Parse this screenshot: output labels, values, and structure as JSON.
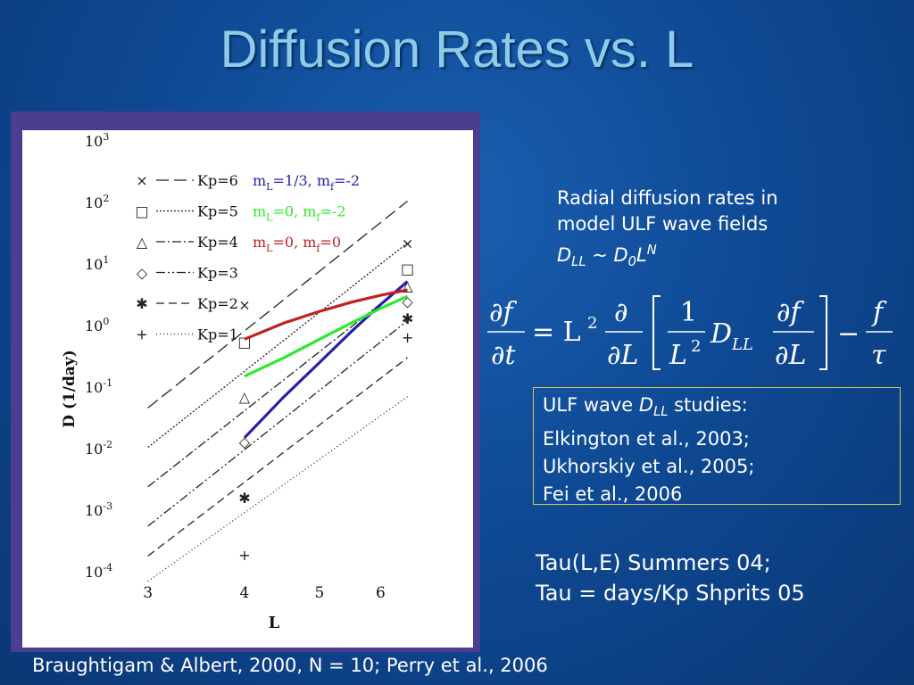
{
  "slide": {
    "title": "Diffusion Rates vs. L",
    "footer": "Braughtigam & Albert, 2000, N = 10; Perry et al., 2006"
  },
  "description": {
    "line1": "Radial diffusion rates in",
    "line2": "model ULF wave fields",
    "formula_D": "D",
    "formula_LL_sub": "LL",
    "formula_tilde": " ~ ",
    "formula_D0": "D",
    "formula_0_sub": "0",
    "formula_L": "L",
    "formula_N_sup": "N"
  },
  "equation": {
    "df": "∂f",
    "dt": "∂t",
    "equals_L": "= L",
    "sq": "2",
    "d": "∂",
    "dL": "∂L",
    "one": "1",
    "L2": "L",
    "D": "D",
    "LL": "LL",
    "df2": "∂f",
    "dL2": "∂L",
    "minus": "−",
    "f": "f",
    "tau": "τ"
  },
  "studies": {
    "line1_pre": "ULF wave ",
    "line1_D": "D",
    "line1_LL": "LL",
    "line1_post": " studies:",
    "line2": "Elkington et al., 2003;",
    "line3": "Ukhorskiy et al., 2005;",
    "line4": "Fei et al., 2006"
  },
  "tau": {
    "line1": "Tau(L,E) Summers 04;",
    "line2": "Tau = days/Kp  Shprits 05"
  },
  "chart_data": {
    "type": "line",
    "xlabel": "L",
    "ylabel": "D (1/day)",
    "x_scale": "log",
    "y_scale": "log",
    "xlim": [
      2.75,
      7.2
    ],
    "ylim": [
      0.0001,
      1000
    ],
    "x_ticks": [
      3,
      4,
      5,
      6
    ],
    "x_tick_labels": [
      "3",
      "4",
      "5",
      "6"
    ],
    "y_ticks": [
      0.0001,
      0.001,
      0.01,
      0.1,
      1,
      10,
      100,
      1000
    ],
    "y_tick_labels": [
      {
        "base": "10",
        "exp": "-4"
      },
      {
        "base": "10",
        "exp": "-3"
      },
      {
        "base": "10",
        "exp": "-2"
      },
      {
        "base": "10",
        "exp": "-1"
      },
      {
        "base": "10",
        "exp": "0"
      },
      {
        "base": "10",
        "exp": "1"
      },
      {
        "base": "10",
        "exp": "2"
      },
      {
        "base": "10",
        "exp": "3"
      }
    ],
    "kp_series": [
      {
        "name": "Kp=6",
        "marker": "×",
        "dash": "14,6",
        "line_x": [
          3.0,
          6.5
        ],
        "line_y": [
          0.046,
          105
        ],
        "points": [
          {
            "x": 4,
            "y": 2.2
          },
          {
            "x": 6.5,
            "y": 22
          }
        ]
      },
      {
        "name": "Kp=5",
        "marker": "□",
        "dash": "2,2",
        "line_x": [
          3.0,
          6.5
        ],
        "line_y": [
          0.0105,
          22
        ],
        "points": [
          {
            "x": 4,
            "y": 0.55
          },
          {
            "x": 6.5,
            "y": 8.5
          }
        ]
      },
      {
        "name": "Kp=4",
        "marker": "△",
        "dash": "10,3,2,3",
        "line_x": [
          3.0,
          6.5
        ],
        "line_y": [
          0.0024,
          5
        ],
        "points": [
          {
            "x": 4,
            "y": 0.07
          },
          {
            "x": 6.5,
            "y": 4.5
          }
        ]
      },
      {
        "name": "Kp=3",
        "marker": "◇",
        "dash": "10,3,2,3,2,3",
        "line_x": [
          3.0,
          6.5
        ],
        "line_y": [
          0.00055,
          1.2
        ],
        "points": [
          {
            "x": 4,
            "y": 0.013
          },
          {
            "x": 6.5,
            "y": 2.5
          }
        ]
      },
      {
        "name": "Kp=2",
        "marker": "✱",
        "dash": "9,5",
        "line_x": [
          3.0,
          6.5
        ],
        "line_y": [
          0.00018,
          0.3
        ],
        "points": [
          {
            "x": 4,
            "y": 0.0016
          },
          {
            "x": 6.5,
            "y": 1.3
          }
        ]
      },
      {
        "name": "Kp=1",
        "marker": "+",
        "dash": "1,3",
        "line_x": [
          3.0,
          6.5
        ],
        "line_y": [
          7e-05,
          0.07
        ],
        "points": [
          {
            "x": 4,
            "y": 0.00019
          },
          {
            "x": 6.5,
            "y": 0.65
          }
        ]
      }
    ],
    "model_series": [
      {
        "name_main": "m",
        "name_L": "L",
        "name_mid": "=1/3, m",
        "name_f": "f",
        "name_end": "=-2",
        "color": "#2222aa",
        "x": [
          4.0,
          4.5,
          5.0,
          5.5,
          6.0,
          6.5
        ],
        "y": [
          0.015,
          0.07,
          0.25,
          0.8,
          2.2,
          5.2
        ]
      },
      {
        "name_main": "m",
        "name_L": "L",
        "name_mid": "=0, m",
        "name_f": "f",
        "name_end": "=-2",
        "color": "#2ee82e",
        "x": [
          4.0,
          4.5,
          5.0,
          5.5,
          6.0,
          6.5
        ],
        "y": [
          0.15,
          0.3,
          0.6,
          1.1,
          1.9,
          3.0
        ]
      },
      {
        "name_main": "m",
        "name_L": "L",
        "name_mid": "=0, m",
        "name_f": "f",
        "name_end": "=0",
        "color": "#c02020",
        "x": [
          4.0,
          4.5,
          5.0,
          5.5,
          6.0,
          6.5
        ],
        "y": [
          0.6,
          1.1,
          1.7,
          2.4,
          3.1,
          3.8
        ]
      }
    ],
    "legend_position": "top-left",
    "grid": false
  }
}
